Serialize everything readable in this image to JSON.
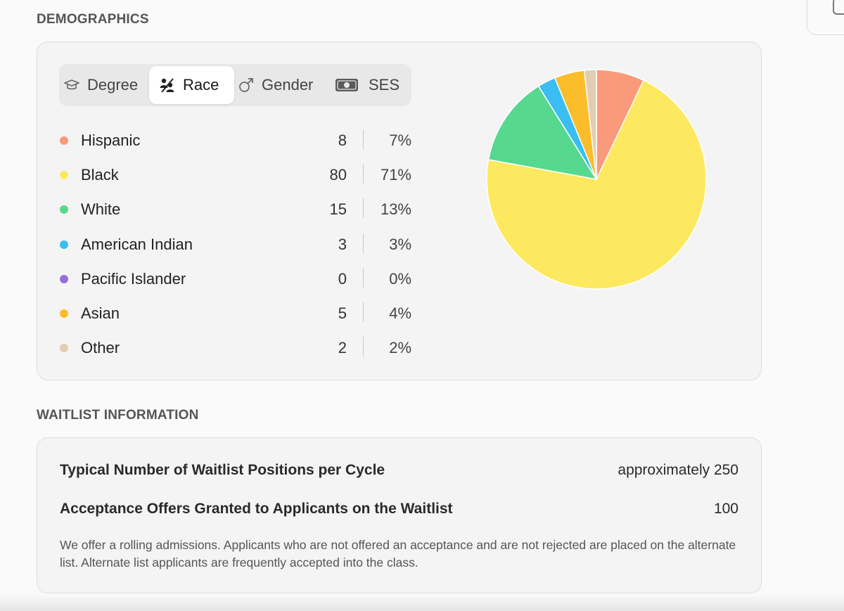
{
  "demographics": {
    "section_title": "DEMOGRAPHICS",
    "tabs": [
      {
        "label": "Degree",
        "icon": "graduation-cap-icon",
        "active": false
      },
      {
        "label": "Race",
        "icon": "people-icon",
        "active": true
      },
      {
        "label": "Gender",
        "icon": "male-symbol-icon",
        "active": false
      },
      {
        "label": "SES",
        "icon": "money-icon",
        "active": false
      }
    ],
    "rows": [
      {
        "label": "Hispanic",
        "count": "8",
        "pct": "7%",
        "color": "#fb9a7a"
      },
      {
        "label": "Black",
        "count": "80",
        "pct": "71%",
        "color": "#fde95f"
      },
      {
        "label": "White",
        "count": "15",
        "pct": "13%",
        "color": "#57d88f"
      },
      {
        "label": "American Indian",
        "count": "3",
        "pct": "3%",
        "color": "#39bdf2"
      },
      {
        "label": "Pacific Islander",
        "count": "0",
        "pct": "0%",
        "color": "#9570dc"
      },
      {
        "label": "Asian",
        "count": "5",
        "pct": "4%",
        "color": "#fbbd2a"
      },
      {
        "label": "Other",
        "count": "2",
        "pct": "2%",
        "color": "#e3cdb2"
      }
    ]
  },
  "chart_data": {
    "type": "pie",
    "categories": [
      "Hispanic",
      "Black",
      "White",
      "American Indian",
      "Pacific Islander",
      "Asian",
      "Other"
    ],
    "values": [
      8,
      80,
      15,
      3,
      0,
      5,
      2
    ],
    "colors": [
      "#fb9a7a",
      "#fde95f",
      "#57d88f",
      "#39bdf2",
      "#9570dc",
      "#fbbd2a",
      "#e3cdb2"
    ],
    "start": "top, clockwise"
  },
  "waitlist": {
    "section_title": "WAITLIST INFORMATION",
    "rows": [
      {
        "label": "Typical Number of Waitlist Positions per Cycle",
        "value": "approximately 250"
      },
      {
        "label": "Acceptance Offers Granted to Applicants on the Waitlist",
        "value": "100"
      }
    ],
    "note": "We offer a rolling admissions. Applicants who are not offered an acceptance and are not rejected are placed on the alternate list. Alternate list applicants are frequently accepted into the class."
  }
}
